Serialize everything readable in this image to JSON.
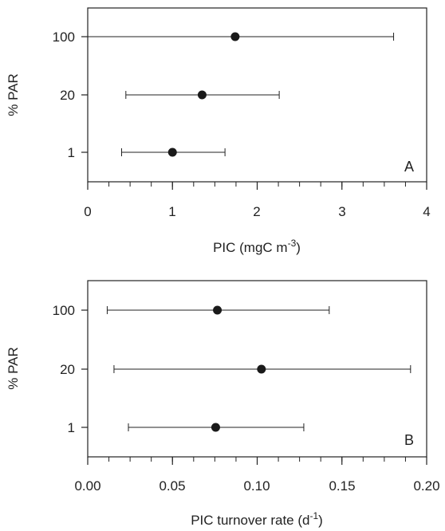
{
  "chart_data": [
    {
      "type": "scatter",
      "panel_tag": "A",
      "xlabel_main": "PIC (mgC m",
      "xlabel_sup": "-3",
      "xlabel_end": ")",
      "ylabel": "% PAR",
      "xlim": [
        0,
        4
      ],
      "x_ticks": [
        "0",
        "1",
        "2",
        "3",
        "4"
      ],
      "x_minor_step": 0.25,
      "y_categories": [
        "100",
        "20",
        "1"
      ],
      "points": [
        {
          "y": "100",
          "x": 1.74,
          "low": 0.0,
          "high": 3.61
        },
        {
          "y": "20",
          "x": 1.35,
          "low": 0.45,
          "high": 2.26
        },
        {
          "y": "1",
          "x": 1.0,
          "low": 0.4,
          "high": 1.62
        }
      ],
      "grid": false,
      "legend": "none"
    },
    {
      "type": "scatter",
      "panel_tag": "B",
      "xlabel_main": "PIC turnover rate (d",
      "xlabel_sup": "-1",
      "xlabel_end": ")",
      "ylabel": "% PAR",
      "xlim": [
        0,
        0.2
      ],
      "x_ticks": [
        "0.00",
        "0.05",
        "0.10",
        "0.15",
        "0.20"
      ],
      "x_minor_step": 0.0125,
      "y_categories": [
        "100",
        "20",
        "1"
      ],
      "points": [
        {
          "y": "100",
          "x": 0.0765,
          "low": 0.0115,
          "high": 0.1425
        },
        {
          "y": "20",
          "x": 0.1025,
          "low": 0.0155,
          "high": 0.1905
        },
        {
          "y": "1",
          "x": 0.0755,
          "low": 0.024,
          "high": 0.1275
        }
      ],
      "grid": false,
      "legend": "none"
    }
  ]
}
